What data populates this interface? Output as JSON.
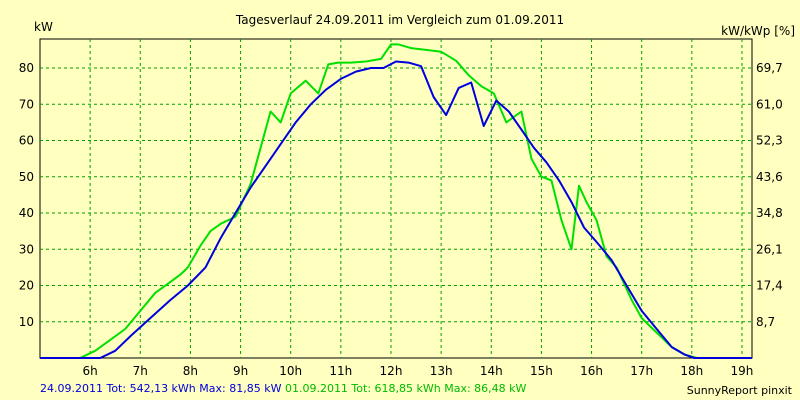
{
  "chart_data": {
    "type": "line",
    "title": "Tagesverlauf 24.09.2011 im Vergleich zum 01.09.2011",
    "ylabel": "kW",
    "y2label": "kW/kWp [%]",
    "xlim": [
      5.0,
      19.2
    ],
    "ylim": [
      0,
      88
    ],
    "x_ticks": [
      6,
      7,
      8,
      9,
      10,
      11,
      12,
      13,
      14,
      15,
      16,
      17,
      18,
      19
    ],
    "x_tick_labels": [
      "6h",
      "7h",
      "8h",
      "9h",
      "10h",
      "11h",
      "12h",
      "13h",
      "14h",
      "15h",
      "16h",
      "17h",
      "18h",
      "19h"
    ],
    "y_ticks": [
      10,
      20,
      30,
      40,
      50,
      60,
      70,
      80
    ],
    "y_tick_labels": [
      "10",
      "20",
      "30",
      "40",
      "50",
      "60",
      "70",
      "80"
    ],
    "y2_tick_labels": [
      "8,7",
      "17,4",
      "26,1",
      "34,8",
      "43,6",
      "52,3",
      "61,0",
      "69,7"
    ],
    "grid": true,
    "series": [
      {
        "name": "24.09.2011",
        "color": "#0000dd",
        "x": [
          5.0,
          5.9,
          6.2,
          6.5,
          6.8,
          7.2,
          7.6,
          7.95,
          8.3,
          8.6,
          8.9,
          9.2,
          9.5,
          9.8,
          10.1,
          10.4,
          10.7,
          11.0,
          11.3,
          11.6,
          11.85,
          12.1,
          12.35,
          12.6,
          12.85,
          13.1,
          13.35,
          13.6,
          13.85,
          14.1,
          14.35,
          14.6,
          14.85,
          15.1,
          15.35,
          15.6,
          15.85,
          16.1,
          16.4,
          16.7,
          17.0,
          17.3,
          17.6,
          17.85,
          18.05,
          18.3,
          18.5,
          19.2
        ],
        "y": [
          0,
          0,
          0,
          2,
          6,
          11,
          16,
          20,
          25,
          33,
          40,
          47,
          53,
          59,
          65,
          70,
          74,
          77,
          79,
          80,
          80,
          81.8,
          81.5,
          80.5,
          72,
          67,
          74.5,
          76,
          64,
          71,
          68,
          63,
          58,
          54,
          49,
          43,
          36,
          32,
          27,
          20,
          13,
          8,
          3,
          1,
          0,
          0,
          0,
          0
        ]
      },
      {
        "name": "01.09.2011",
        "color": "#00e000",
        "x": [
          5.0,
          5.4,
          5.8,
          6.1,
          6.4,
          6.7,
          7.0,
          7.3,
          7.6,
          7.8,
          7.95,
          8.2,
          8.4,
          8.6,
          8.9,
          9.2,
          9.4,
          9.6,
          9.8,
          10.0,
          10.3,
          10.55,
          10.75,
          10.95,
          11.2,
          11.5,
          11.8,
          12.0,
          12.15,
          12.4,
          12.7,
          13.0,
          13.3,
          13.55,
          13.8,
          14.05,
          14.3,
          14.6,
          14.8,
          15.0,
          15.2,
          15.4,
          15.6,
          15.75,
          15.9,
          16.1,
          16.3,
          16.5,
          16.8,
          17.0,
          17.3,
          17.6,
          17.85,
          18.1,
          18.3,
          18.6,
          18.85,
          19.2
        ],
        "y": [
          0,
          0,
          0,
          2,
          5,
          8,
          13,
          18,
          21,
          23,
          25,
          31,
          35,
          37,
          39,
          48,
          58,
          68,
          65,
          73,
          76.5,
          73,
          81,
          81.5,
          81.5,
          81.8,
          82.5,
          86.5,
          86.5,
          85.5,
          85,
          84.5,
          82,
          78,
          75,
          73,
          65,
          68,
          55,
          50,
          49,
          38,
          30,
          47.5,
          43,
          38,
          28,
          25,
          16,
          11,
          7,
          3,
          1,
          0,
          0,
          0,
          0,
          0
        ]
      }
    ],
    "footer": {
      "blue": "24.09.2011  Tot: 542,13 kWh Max: 81,85 kW",
      "green": "01.09.2011  Tot: 618,85 kWh Max: 86,48 kW",
      "credit": "SunnyReport pinxit"
    }
  }
}
